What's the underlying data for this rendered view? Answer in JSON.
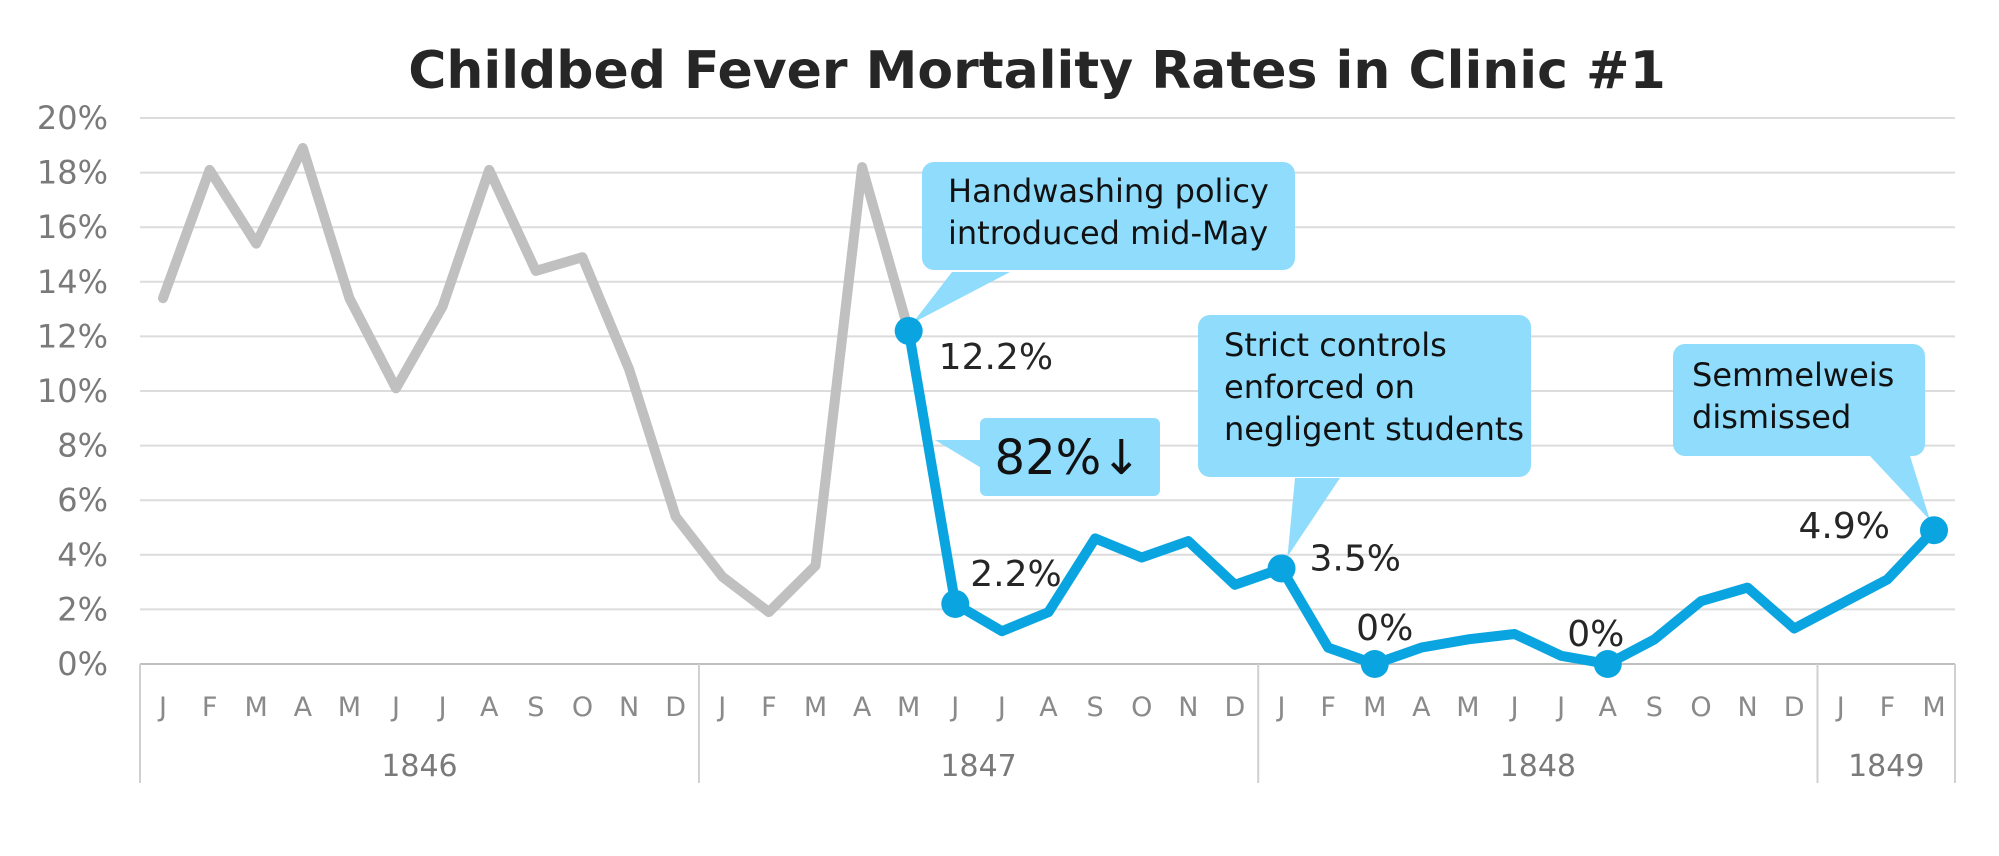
{
  "chart_data": {
    "type": "line",
    "title": "Childbed Fever Mortality Rates in Clinic #1",
    "y_ticks": [
      "0%",
      "2%",
      "4%",
      "6%",
      "8%",
      "10%",
      "12%",
      "14%",
      "16%",
      "18%",
      "20%"
    ],
    "ylim": [
      0,
      20
    ],
    "grid": true,
    "month_labels": [
      "J",
      "F",
      "M",
      "A",
      "M",
      "J",
      "J",
      "A",
      "S",
      "O",
      "N",
      "D",
      "J",
      "F",
      "M",
      "A",
      "M",
      "J",
      "J",
      "A",
      "S",
      "O",
      "N",
      "D",
      "J",
      "F",
      "M",
      "A",
      "M",
      "J",
      "J",
      "A",
      "S",
      "O",
      "N",
      "D",
      "J",
      "F",
      "M"
    ],
    "years": [
      {
        "label": "1846",
        "start": 0,
        "end": 11
      },
      {
        "label": "1847",
        "start": 12,
        "end": 23
      },
      {
        "label": "1848",
        "start": 24,
        "end": 35
      },
      {
        "label": "1849",
        "start": 36,
        "end": 38
      }
    ],
    "series": [
      {
        "color": "#c0c0c0",
        "start_index": 0,
        "values": [
          13.4,
          18.1,
          15.4,
          18.9,
          13.4,
          10.1,
          13.1,
          18.1,
          14.4,
          14.9,
          10.8,
          5.4,
          3.2,
          1.9,
          3.6,
          18.2,
          12.2
        ]
      },
      {
        "color": "#0aa5e0",
        "start_index": 16,
        "values": [
          12.2,
          2.2,
          1.2,
          1.9,
          4.6,
          3.9,
          4.5,
          2.9,
          3.5,
          0.6,
          0.0,
          0.6,
          0.9,
          1.1,
          0.3,
          0.0,
          0.9,
          2.3,
          2.8,
          1.3,
          2.2,
          3.1,
          4.9
        ]
      }
    ],
    "markers": [
      {
        "index": 16,
        "value": 12.2,
        "label": "12.2%"
      },
      {
        "index": 17,
        "value": 2.2,
        "label": "2.2%"
      },
      {
        "index": 24,
        "value": 3.5,
        "label": "3.5%"
      },
      {
        "index": 26,
        "value": 0.0,
        "label": "0%"
      },
      {
        "index": 31,
        "value": 0.0,
        "label": "0%"
      },
      {
        "index": 38,
        "value": 4.9,
        "label": "4.9%"
      }
    ],
    "annotations": [
      {
        "lines": [
          "Handwashing policy",
          "introduced mid-May"
        ]
      },
      {
        "lines": [
          "Strict controls",
          "enforced on",
          "negligent students"
        ]
      },
      {
        "lines": [
          "Semmelweis",
          "dismissed"
        ]
      }
    ],
    "drop_label": "82%↓",
    "colors": {
      "callout": "#8fdcfc",
      "highlight": "#0aa5e0",
      "before": "#c0c0c0"
    }
  }
}
